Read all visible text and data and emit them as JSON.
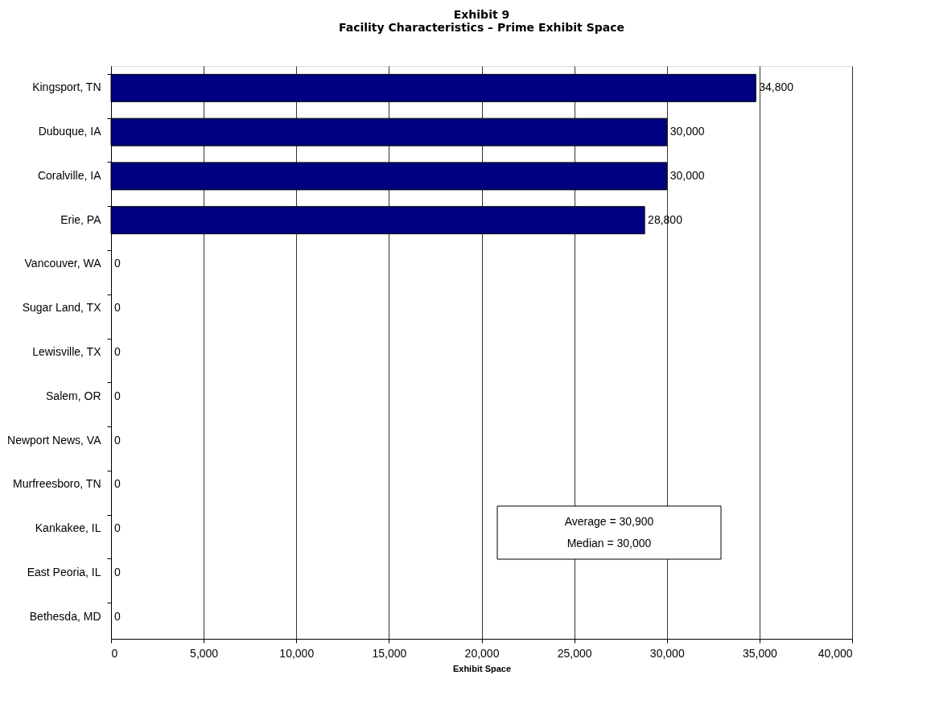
{
  "chart_data": {
    "type": "bar",
    "orientation": "horizontal",
    "title": "Exhibit 9",
    "subtitle": "Facility Characteristics – Prime Exhibit Space",
    "xlabel": "Exhibit Space",
    "categories": [
      "Kingsport, TN",
      "Dubuque, IA",
      "Coralville, IA",
      "Erie, PA",
      "Vancouver, WA",
      "Sugar Land, TX",
      "Lewisville, TX",
      "Salem, OR",
      "Newport News, VA",
      "Murfreesboro, TN",
      "Kankakee, IL",
      "East Peoria, IL",
      "Bethesda, MD"
    ],
    "values": [
      34800,
      30000,
      30000,
      28800,
      0,
      0,
      0,
      0,
      0,
      0,
      0,
      0,
      0
    ],
    "value_labels": [
      "34,800",
      "30,000",
      "30,000",
      "28,800",
      "0",
      "0",
      "0",
      "0",
      "0",
      "0",
      "0",
      "0",
      "0"
    ],
    "color": "#000080",
    "xlim": [
      0,
      40000
    ],
    "xticks": [
      0,
      {
        "value": 5000,
        "label": "5,000"
      },
      {
        "value": 10000,
        "label": "10,000"
      },
      {
        "value": 15000,
        "label": "15,000"
      },
      {
        "value": 20000,
        "label": "20,000"
      },
      {
        "value": 25000,
        "label": "25,000"
      },
      {
        "value": 30000,
        "label": "30,000"
      },
      {
        "value": 35000,
        "label": "35,000"
      },
      {
        "value": 40000,
        "label": "40,000"
      }
    ],
    "grid": "x",
    "annotations": [
      "Average = 30,900",
      "Median = 30,000"
    ]
  }
}
